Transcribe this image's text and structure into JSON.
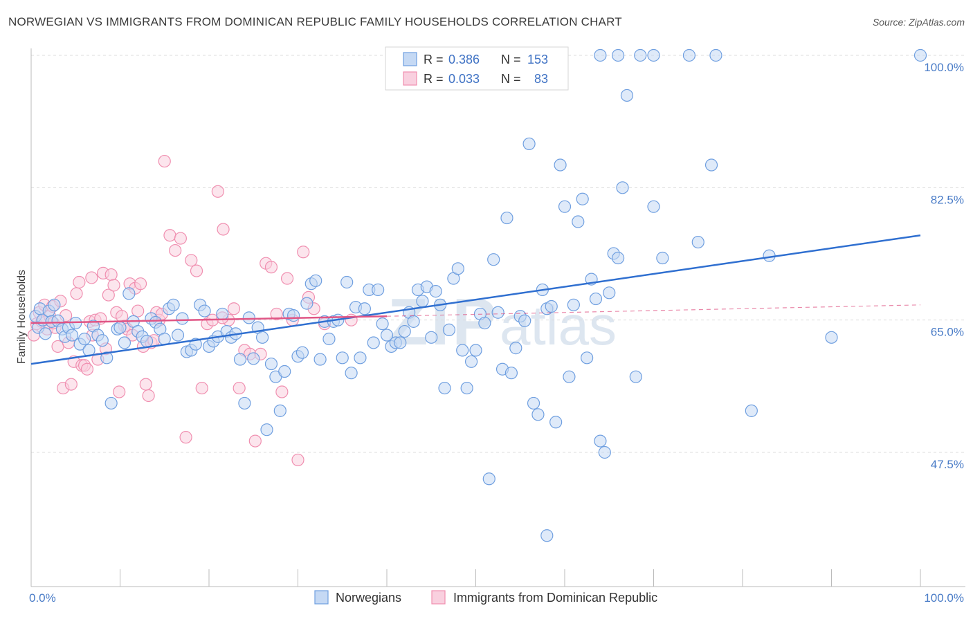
{
  "header": {
    "title": "NORWEGIAN VS IMMIGRANTS FROM DOMINICAN REPUBLIC FAMILY HOUSEHOLDS CORRELATION CHART",
    "source": "Source: ZipAtlas.com"
  },
  "watermark": {
    "part1": "ZIP",
    "part2": "atlas"
  },
  "colors": {
    "blue": "#6f9fe0",
    "blue_fill": "#c5d9f4",
    "blue_line": "#2f6fd0",
    "pink": "#f08fb0",
    "pink_fill": "#f9d0df",
    "pink_line": "#e05585",
    "tick": "#4a7cc7"
  },
  "chart_data": {
    "type": "scatter",
    "title": "NORWEGIAN VS IMMIGRANTS FROM DOMINICAN REPUBLIC FAMILY HOUSEHOLDS CORRELATION CHART",
    "xlabel": "",
    "ylabel": "Family Households",
    "xlim": [
      0,
      100
    ],
    "ylim": [
      30,
      100
    ],
    "x_tick_labels": [
      "0.0%",
      "100.0%"
    ],
    "y_ticks": [
      47.5,
      65.0,
      82.5,
      100.0
    ],
    "y_tick_labels": [
      "47.5%",
      "65.0%",
      "82.5%",
      "100.0%"
    ],
    "grid": "horizontal dashed",
    "legend": {
      "placement": "top-center",
      "rows": [
        {
          "r_label": "R =",
          "r_value": "0.386",
          "n_label": "N =",
          "n_value": "153"
        },
        {
          "r_label": "R =",
          "r_value": "0.033",
          "n_label": "N =",
          "n_value": "83"
        }
      ]
    },
    "bottom_legend": [
      "Norwegians",
      "Immigrants from Dominican Republic"
    ],
    "series": [
      {
        "name": "Norwegians",
        "color": "#6f9fe0",
        "trend": {
          "x": [
            0,
            100
          ],
          "y": [
            59.2,
            76.2
          ]
        },
        "points": [
          [
            0.5,
            65.5
          ],
          [
            0.8,
            64.0
          ],
          [
            1,
            66.5
          ],
          [
            1.3,
            65.0
          ],
          [
            1.6,
            63.2
          ],
          [
            2,
            66.2
          ],
          [
            2.3,
            64.8
          ],
          [
            2.6,
            67.0
          ],
          [
            3,
            64.9
          ],
          [
            3.5,
            63.8
          ],
          [
            3.8,
            62.8
          ],
          [
            4.2,
            64.0
          ],
          [
            4.6,
            63.0
          ],
          [
            5,
            64.6
          ],
          [
            5.5,
            61.8
          ],
          [
            6,
            62.5
          ],
          [
            6.5,
            61.0
          ],
          [
            7,
            64.2
          ],
          [
            7.5,
            63.0
          ],
          [
            8,
            62.3
          ],
          [
            8.5,
            60.0
          ],
          [
            9,
            54.0
          ],
          [
            9.7,
            63.8
          ],
          [
            10,
            64.0
          ],
          [
            10.5,
            62.0
          ],
          [
            11,
            68.5
          ],
          [
            11.5,
            64.8
          ],
          [
            12,
            63.5
          ],
          [
            12.5,
            62.8
          ],
          [
            13,
            62.2
          ],
          [
            13.5,
            65.2
          ],
          [
            14,
            64.7
          ],
          [
            14.5,
            63.8
          ],
          [
            15,
            62.5
          ],
          [
            15.5,
            66.5
          ],
          [
            16,
            67.0
          ],
          [
            16.5,
            63.0
          ],
          [
            17,
            65.2
          ],
          [
            17.5,
            60.8
          ],
          [
            18,
            61.0
          ],
          [
            18.5,
            61.8
          ],
          [
            19,
            67.0
          ],
          [
            19.5,
            66.2
          ],
          [
            20,
            61.5
          ],
          [
            20.5,
            62.2
          ],
          [
            21,
            62.8
          ],
          [
            21.5,
            65.8
          ],
          [
            22,
            63.5
          ],
          [
            22.5,
            62.7
          ],
          [
            23,
            63.2
          ],
          [
            23.5,
            59.8
          ],
          [
            24,
            54.0
          ],
          [
            24.5,
            65.3
          ],
          [
            25,
            59.9
          ],
          [
            25.5,
            64.0
          ],
          [
            26,
            62.7
          ],
          [
            26.5,
            50.5
          ],
          [
            27,
            59.2
          ],
          [
            27.5,
            57.5
          ],
          [
            28,
            53.0
          ],
          [
            28.5,
            58.2
          ],
          [
            29,
            65.8
          ],
          [
            29.5,
            65.6
          ],
          [
            30,
            60.2
          ],
          [
            30.5,
            60.7
          ],
          [
            31,
            67.2
          ],
          [
            31.5,
            69.8
          ],
          [
            32,
            70.2
          ],
          [
            32.5,
            59.8
          ],
          [
            33,
            64.8
          ],
          [
            33.5,
            62.5
          ],
          [
            34,
            64.8
          ],
          [
            34.5,
            65.0
          ],
          [
            35,
            60.0
          ],
          [
            35.5,
            70.0
          ],
          [
            36,
            58.0
          ],
          [
            36.5,
            66.7
          ],
          [
            37,
            60.0
          ],
          [
            37.5,
            66.5
          ],
          [
            38,
            69.0
          ],
          [
            38.5,
            62.0
          ],
          [
            39,
            69.0
          ],
          [
            39.5,
            64.5
          ],
          [
            40,
            63.0
          ],
          [
            40.5,
            61.5
          ],
          [
            41,
            62.0
          ],
          [
            41.5,
            62.0
          ],
          [
            42,
            63.5
          ],
          [
            42.5,
            66.0
          ],
          [
            43,
            64.8
          ],
          [
            43.5,
            69.0
          ],
          [
            44,
            67.5
          ],
          [
            44.5,
            69.4
          ],
          [
            45,
            62.7
          ],
          [
            45.5,
            68.8
          ],
          [
            46,
            67.0
          ],
          [
            46.5,
            56.0
          ],
          [
            47,
            63.7
          ],
          [
            47.5,
            70.5
          ],
          [
            48,
            71.8
          ],
          [
            48.5,
            61.0
          ],
          [
            49,
            56.0
          ],
          [
            49.5,
            59.5
          ],
          [
            50,
            61.0
          ],
          [
            50.5,
            65.8
          ],
          [
            51,
            64.6
          ],
          [
            51.5,
            44.0
          ],
          [
            52,
            73.0
          ],
          [
            52.5,
            66.0
          ],
          [
            53,
            58.5
          ],
          [
            53.5,
            78.5
          ],
          [
            54,
            58.0
          ],
          [
            54.5,
            61.3
          ],
          [
            55,
            65.5
          ],
          [
            55.5,
            64.9
          ],
          [
            56,
            88.3
          ],
          [
            56.5,
            54.0
          ],
          [
            57,
            52.5
          ],
          [
            57.5,
            69.0
          ],
          [
            58,
            66.5
          ],
          [
            58.5,
            66.8
          ],
          [
            59,
            51.5
          ],
          [
            59.5,
            85.5
          ],
          [
            60,
            80.0
          ],
          [
            60.5,
            57.5
          ],
          [
            61,
            67.0
          ],
          [
            61.5,
            78.0
          ],
          [
            62,
            81.0
          ],
          [
            62.5,
            60.0
          ],
          [
            63,
            70.4
          ],
          [
            63.5,
            67.8
          ],
          [
            64,
            49.0
          ],
          [
            64.5,
            47.5
          ],
          [
            65,
            68.6
          ],
          [
            65.5,
            73.8
          ],
          [
            66,
            73.2
          ],
          [
            66.5,
            82.5
          ],
          [
            67,
            94.7
          ],
          [
            68,
            57.5
          ],
          [
            68.5,
            100
          ],
          [
            70,
            80.0
          ],
          [
            71,
            73.2
          ],
          [
            75,
            75.3
          ],
          [
            76.5,
            85.5
          ],
          [
            77,
            100
          ],
          [
            81,
            53.0
          ],
          [
            83,
            73.5
          ],
          [
            90,
            62.7
          ],
          [
            100,
            100
          ],
          [
            64,
            100
          ],
          [
            66,
            100
          ],
          [
            70,
            100
          ],
          [
            74,
            100
          ],
          [
            58,
            36.5
          ]
        ]
      },
      {
        "name": "Immigrants from Dominican Republic",
        "color": "#f08fb0",
        "trend": {
          "x": [
            0,
            40
          ],
          "y": [
            64.6,
            65.5
          ]
        },
        "trend_dashed": {
          "x": [
            40,
            100
          ],
          "y": [
            65.5,
            67.0
          ]
        },
        "points": [
          [
            0.3,
            63.0
          ],
          [
            0.6,
            64.5
          ],
          [
            0.9,
            66.0
          ],
          [
            1.2,
            64.8
          ],
          [
            1.5,
            67.0
          ],
          [
            1.8,
            63.8
          ],
          [
            2.1,
            65.5
          ],
          [
            2.4,
            66.8
          ],
          [
            2.7,
            64.0
          ],
          [
            3.0,
            61.5
          ],
          [
            3.3,
            67.5
          ],
          [
            3.6,
            56.0
          ],
          [
            3.9,
            65.6
          ],
          [
            4.2,
            62.0
          ],
          [
            4.5,
            56.5
          ],
          [
            4.8,
            59.5
          ],
          [
            5.1,
            68.5
          ],
          [
            5.4,
            70.0
          ],
          [
            5.7,
            59.0
          ],
          [
            6.0,
            59.0
          ],
          [
            6.3,
            58.5
          ],
          [
            6.6,
            64.8
          ],
          [
            6.9,
            63.0
          ],
          [
            7.2,
            65.0
          ],
          [
            7.5,
            59.8
          ],
          [
            7.8,
            65.2
          ],
          [
            8.1,
            71.2
          ],
          [
            8.4,
            61.2
          ],
          [
            8.7,
            68.3
          ],
          [
            9.0,
            71.0
          ],
          [
            9.3,
            69.6
          ],
          [
            9.6,
            66.0
          ],
          [
            9.9,
            55.5
          ],
          [
            10.2,
            65.5
          ],
          [
            10.5,
            64.2
          ],
          [
            10.8,
            63.8
          ],
          [
            11.1,
            69.8
          ],
          [
            11.4,
            63.0
          ],
          [
            11.7,
            69.2
          ],
          [
            12.0,
            66.2
          ],
          [
            12.3,
            69.8
          ],
          [
            12.6,
            61.5
          ],
          [
            12.9,
            56.5
          ],
          [
            13.2,
            55.0
          ],
          [
            13.5,
            62.0
          ],
          [
            13.8,
            62.3
          ],
          [
            14.1,
            66.0
          ],
          [
            14.4,
            65.0
          ],
          [
            15.0,
            86.0
          ],
          [
            15.6,
            76.2
          ],
          [
            16.2,
            74.2
          ],
          [
            16.8,
            75.8
          ],
          [
            17.4,
            49.5
          ],
          [
            18.0,
            72.9
          ],
          [
            18.6,
            71.5
          ],
          [
            19.2,
            56.0
          ],
          [
            19.8,
            64.5
          ],
          [
            20.4,
            65.0
          ],
          [
            21.0,
            82.0
          ],
          [
            21.6,
            77.0
          ],
          [
            22.2,
            65.0
          ],
          [
            22.8,
            66.5
          ],
          [
            23.4,
            56.0
          ],
          [
            24.0,
            61.0
          ],
          [
            24.6,
            60.5
          ],
          [
            25.2,
            49.0
          ],
          [
            25.8,
            60.5
          ],
          [
            26.4,
            72.5
          ],
          [
            27.0,
            72.0
          ],
          [
            27.6,
            65.8
          ],
          [
            28.2,
            55.5
          ],
          [
            28.8,
            70.5
          ],
          [
            29.4,
            65.0
          ],
          [
            30.0,
            46.5
          ],
          [
            30.6,
            74.0
          ],
          [
            31.2,
            68.0
          ],
          [
            31.8,
            66.5
          ],
          [
            33.0,
            64.5
          ],
          [
            36.0,
            65.0
          ],
          [
            21.5,
            65.3
          ],
          [
            6.8,
            70.6
          ],
          [
            2.5,
            64.6
          ],
          [
            14.7,
            65.8
          ]
        ]
      }
    ]
  }
}
